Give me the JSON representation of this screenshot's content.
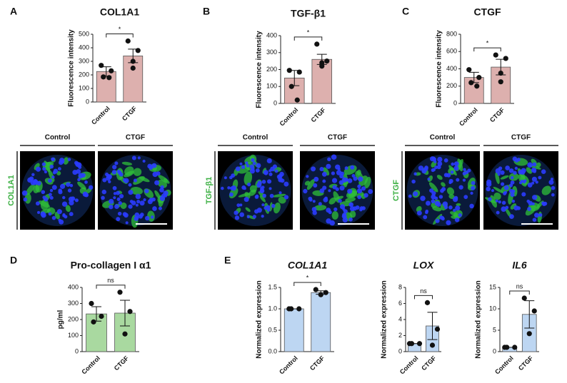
{
  "figure": {
    "panels": [
      "A",
      "B",
      "C",
      "D",
      "E"
    ],
    "image_groups": [
      {
        "stain": "COL1A1",
        "columns": [
          "Control",
          "CTGF"
        ]
      },
      {
        "stain": "TGF-β1",
        "columns": [
          "Control",
          "CTGF"
        ]
      },
      {
        "stain": "CTGF",
        "columns": [
          "Control",
          "CTGF"
        ]
      }
    ]
  },
  "chart_data": [
    {
      "type": "bar",
      "title": "COL1A1",
      "ylabel": "Fluorescence intensity",
      "categories": [
        "Control",
        "CTGF"
      ],
      "values": [
        225,
        340
      ],
      "errors": [
        35,
        50
      ],
      "points": [
        [
          270,
          230,
          185,
          180
        ],
        [
          450,
          380,
          300,
          250
        ]
      ],
      "significance": "*",
      "color": "#ddb0ae",
      "ylim": [
        0,
        500
      ],
      "yticks": [
        0,
        100,
        200,
        300,
        400,
        500
      ]
    },
    {
      "type": "bar",
      "title": "TGF-β1",
      "ylabel": "Fluorescence intensity",
      "categories": [
        "Control",
        "CTGF"
      ],
      "values": [
        150,
        260
      ],
      "errors": [
        45,
        30
      ],
      "points": [
        [
          195,
          185,
          100,
          20
        ],
        [
          350,
          250,
          240,
          220
        ]
      ],
      "significance": "*",
      "color": "#ddb0ae",
      "ylim": [
        0,
        400
      ],
      "yticks": [
        0,
        100,
        200,
        300,
        400
      ]
    },
    {
      "type": "bar",
      "title": "CTGF",
      "ylabel": "Fluorescence intensity",
      "categories": [
        "Control",
        "CTGF"
      ],
      "values": [
        300,
        420
      ],
      "errors": [
        60,
        90
      ],
      "points": [
        [
          390,
          300,
          240,
          200
        ],
        [
          560,
          520,
          350,
          250
        ]
      ],
      "significance": "*",
      "color": "#ddb0ae",
      "ylim": [
        0,
        800
      ],
      "yticks": [
        0,
        200,
        400,
        600,
        800
      ]
    },
    {
      "type": "bar",
      "title": "Pro-collagen I α1",
      "ylabel": "pg/ml",
      "categories": [
        "Control",
        "CTGF"
      ],
      "values": [
        235,
        240
      ],
      "errors": [
        45,
        80
      ],
      "points": [
        [
          300,
          220,
          185
        ],
        [
          370,
          250,
          110
        ]
      ],
      "significance": "ns",
      "color": "#a9d9a0",
      "ylim": [
        0,
        400
      ],
      "yticks": [
        0,
        100,
        200,
        300,
        400
      ]
    },
    {
      "type": "bar",
      "title": "COL1A1",
      "italic": true,
      "ylabel": "Normalized expression",
      "categories": [
        "Control",
        "CTGF"
      ],
      "values": [
        1.0,
        1.38
      ],
      "errors": [
        0,
        0.04
      ],
      "points": [
        [
          1.0,
          1.0,
          1.0
        ],
        [
          1.45,
          1.38,
          1.33
        ]
      ],
      "significance": "*",
      "color": "#bdd6f2",
      "ylim": [
        0,
        1.5
      ],
      "yticks": [
        {
          "value": 0,
          "label": "0.0"
        },
        {
          "value": 0.5,
          "label": "0.5"
        },
        {
          "value": 1,
          "label": "1.0"
        },
        {
          "value": 1.5,
          "label": "1.5"
        }
      ]
    },
    {
      "type": "bar",
      "title": "LOX",
      "italic": true,
      "ylabel": "Normalized expression",
      "categories": [
        "Control",
        "CTGF"
      ],
      "values": [
        1.0,
        3.2
      ],
      "errors": [
        0,
        1.7
      ],
      "points": [
        [
          1.0,
          1.0,
          1.0
        ],
        [
          6.1,
          2.8,
          0.8
        ]
      ],
      "significance": "ns",
      "color": "#bdd6f2",
      "ylim": [
        0,
        8
      ],
      "yticks": [
        0,
        2,
        4,
        6,
        8
      ]
    },
    {
      "type": "bar",
      "title": "IL6",
      "italic": true,
      "ylabel": "Normalized expression",
      "categories": [
        "Control",
        "CTGF"
      ],
      "values": [
        1.0,
        8.7
      ],
      "errors": [
        0,
        3.2
      ],
      "points": [
        [
          1.0,
          1.0,
          1.0
        ],
        [
          12.5,
          9.5,
          4.2
        ]
      ],
      "significance": "ns",
      "color": "#bdd6f2",
      "ylim": [
        0,
        15
      ],
      "yticks": [
        0,
        5,
        10,
        15
      ]
    }
  ]
}
